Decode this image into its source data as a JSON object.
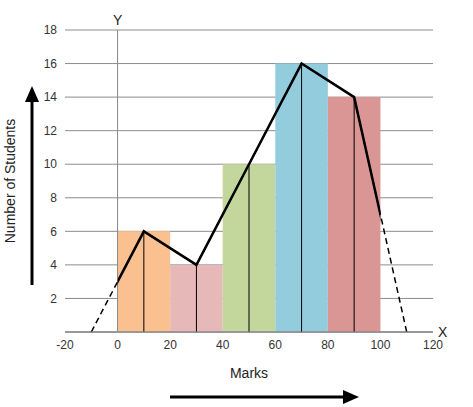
{
  "chart_data": {
    "type": "histogram",
    "x_label": "Marks",
    "y_label": "Number of Students",
    "x_axis_name": "X",
    "y_axis_name": "Y",
    "bins": [
      0,
      20,
      40,
      60,
      80,
      100
    ],
    "counts": [
      6,
      4,
      10,
      16,
      14
    ],
    "colors": [
      "#fac090",
      "#e6b9b8",
      "#c3d69b",
      "#93cddd",
      "#d99694"
    ],
    "polygon": {
      "x": [
        -10,
        10,
        30,
        50,
        70,
        90,
        110
      ],
      "values": [
        0,
        6,
        4,
        10,
        16,
        14,
        0
      ],
      "color": "#000000"
    },
    "xlim": [
      -20,
      120
    ],
    "xticks": [
      -20,
      0,
      20,
      40,
      60,
      80,
      100,
      120
    ],
    "ylim": [
      0,
      18
    ],
    "yticks": [
      2,
      4,
      6,
      8,
      10,
      12,
      14,
      16,
      18
    ],
    "grid": true
  }
}
